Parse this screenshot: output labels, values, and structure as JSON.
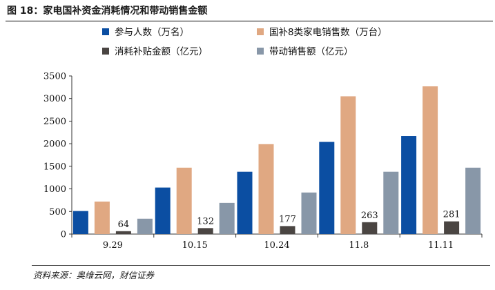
{
  "figure": {
    "title": "图 18：家电国补资金消耗情况和带动销售金额",
    "source": "资料来源：奥维云网，财信证券"
  },
  "chart_data": {
    "type": "bar",
    "categories": [
      "9.29",
      "10.15",
      "10.24",
      "11.8",
      "11.11"
    ],
    "series": [
      {
        "name": "参与人数（万名）",
        "color": "#0b4ea2",
        "values": [
          510,
          1030,
          1380,
          2040,
          2170
        ]
      },
      {
        "name": "国补8类家电销售数（万台）",
        "color": "#e0a882",
        "values": [
          720,
          1470,
          1990,
          3050,
          3270
        ]
      },
      {
        "name": "消耗补贴金额（亿元）",
        "color": "#4a4542",
        "values": [
          64,
          132,
          177,
          263,
          281
        ]
      },
      {
        "name": "带动销售额（亿元）",
        "color": "#8897a8",
        "values": [
          340,
          690,
          920,
          1380,
          1470
        ]
      }
    ],
    "data_labels_series": 2,
    "data_labels": [
      "64",
      "132",
      "177",
      "263",
      "281"
    ],
    "ylim": [
      0,
      3500
    ],
    "yticks": [
      "0",
      "500",
      "1000",
      "1500",
      "2000",
      "2500",
      "3000",
      "3500"
    ],
    "xlabel": "",
    "ylabel": "",
    "grid": false,
    "legend_position": "top"
  }
}
